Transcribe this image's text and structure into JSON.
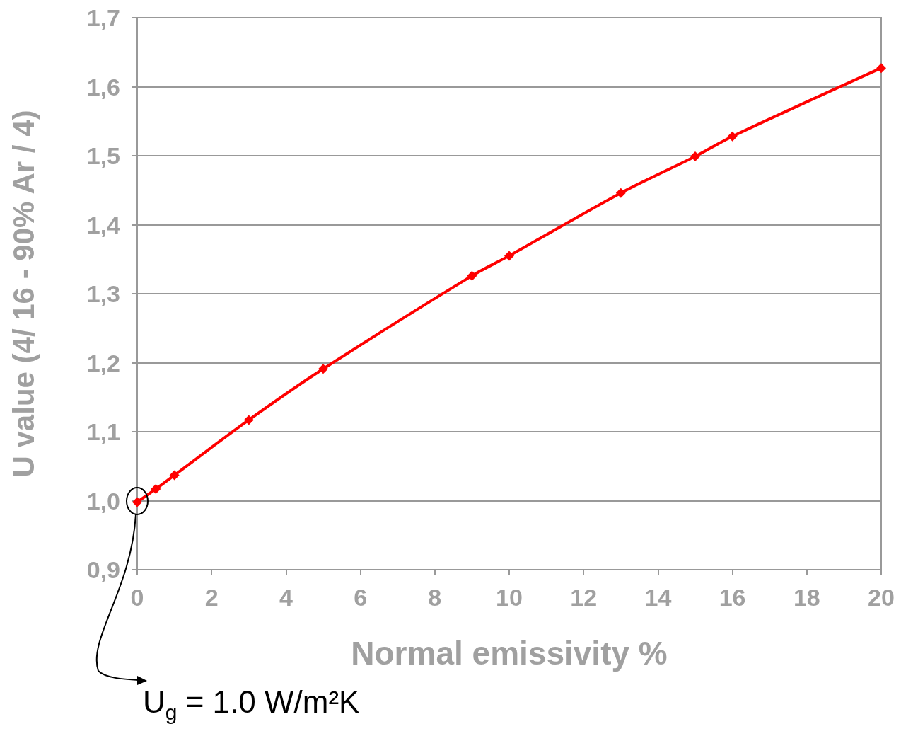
{
  "chart_data": {
    "type": "line",
    "xlabel": "Normal emissivity %",
    "ylabel": "U value (4/ 16 - 90% Ar / 4)",
    "x": [
      0,
      0.5,
      1,
      3,
      5,
      9,
      10,
      13,
      15,
      16,
      20
    ],
    "series": [
      {
        "color": "#ff0000",
        "values": [
          0.998,
          1.017,
          1.037,
          1.117,
          1.191,
          1.326,
          1.355,
          1.446,
          1.499,
          1.528,
          1.627
        ]
      }
    ],
    "xlim": [
      0,
      20
    ],
    "xticks": [
      0,
      2,
      4,
      6,
      8,
      10,
      12,
      14,
      16,
      18,
      20
    ],
    "ylim": [
      0.9,
      1.7
    ],
    "yticks": [
      {
        "value": 0.9,
        "label": "0,9"
      },
      {
        "value": 1.0,
        "label": "1,0"
      },
      {
        "value": 1.1,
        "label": "1,1"
      },
      {
        "value": 1.2,
        "label": "1,2"
      },
      {
        "value": 1.3,
        "label": "1,3"
      },
      {
        "value": 1.4,
        "label": "1,4"
      },
      {
        "value": 1.5,
        "label": "1,5"
      },
      {
        "value": 1.6,
        "label": "1,6"
      },
      {
        "value": 1.7,
        "label": "1,7"
      }
    ],
    "grid": "y",
    "marker": "diamond",
    "line_style": "solid",
    "annotations": [
      "U$_{g}$ = 1.0 W/m²K"
    ]
  }
}
